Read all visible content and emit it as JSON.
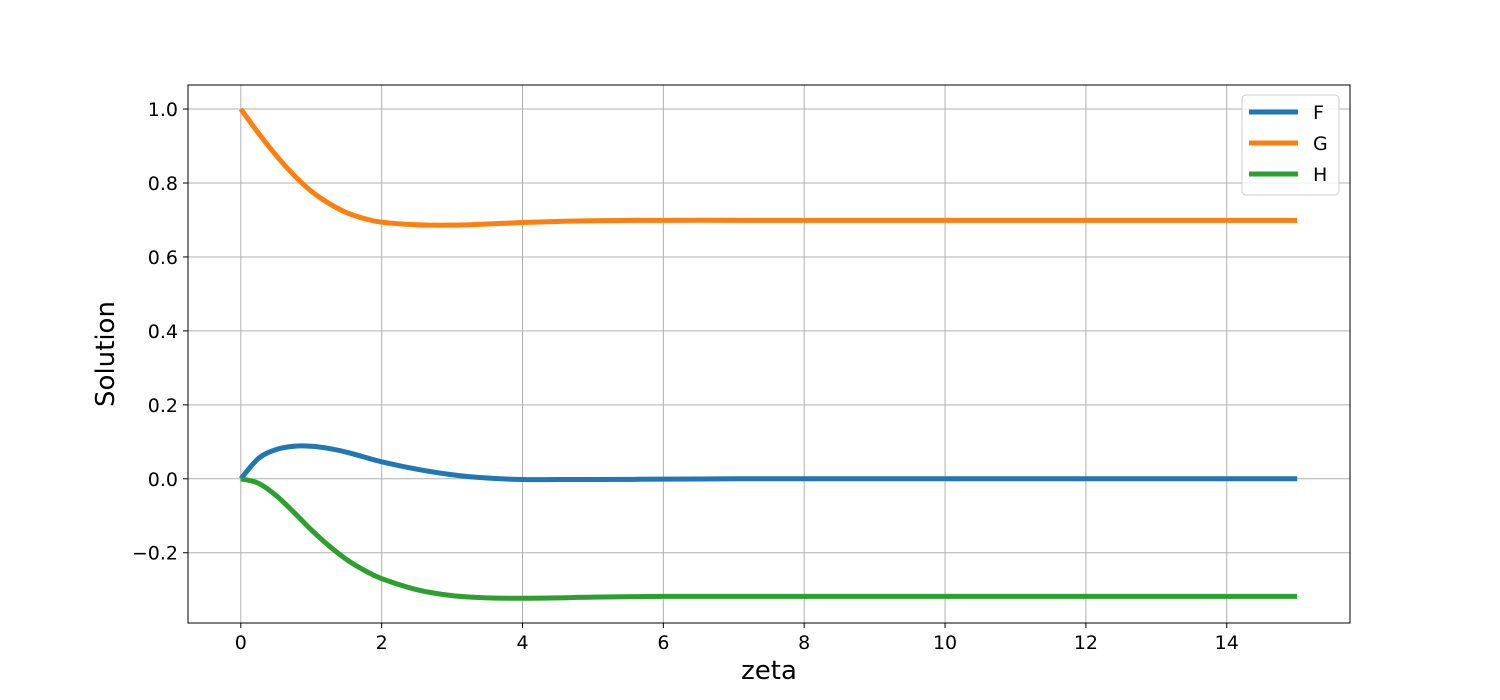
{
  "chart_data": {
    "type": "line",
    "title": "",
    "xlabel": "zeta",
    "ylabel": "Solution",
    "xlim": [
      -0.75,
      15.75
    ],
    "ylim": [
      -0.39,
      1.065
    ],
    "xticks": [
      0,
      2,
      4,
      6,
      8,
      10,
      12,
      14
    ],
    "xtick_labels": [
      "0",
      "2",
      "4",
      "6",
      "8",
      "10",
      "12",
      "14"
    ],
    "yticks": [
      -0.2,
      0.0,
      0.2,
      0.4,
      0.6,
      0.8,
      1.0
    ],
    "ytick_labels": [
      "−0.2",
      "0.0",
      "0.2",
      "0.4",
      "0.6",
      "0.8",
      "1.0"
    ],
    "grid": true,
    "legend_position": "top-right",
    "x": [
      0,
      0.25,
      0.5,
      0.75,
      1,
      1.25,
      1.5,
      1.75,
      2,
      2.5,
      3,
      3.5,
      4,
      4.5,
      5,
      6,
      7,
      8,
      9,
      10,
      11,
      12,
      13,
      14,
      15
    ],
    "series": [
      {
        "name": "F",
        "color": "#1f77b4",
        "values": [
          0.0,
          0.055,
          0.079,
          0.088,
          0.088,
          0.082,
          0.072,
          0.059,
          0.046,
          0.026,
          0.011,
          0.002,
          -0.002,
          -0.002,
          -0.002,
          -0.001,
          0.0,
          0.0,
          0.0,
          0.0,
          0.0,
          0.0,
          0.0,
          0.0,
          0.0
        ]
      },
      {
        "name": "G",
        "color": "#ff7f0e",
        "values": [
          1.0,
          0.935,
          0.875,
          0.822,
          0.778,
          0.745,
          0.72,
          0.704,
          0.694,
          0.687,
          0.686,
          0.689,
          0.693,
          0.696,
          0.698,
          0.699,
          0.699,
          0.699,
          0.699,
          0.699,
          0.699,
          0.699,
          0.699,
          0.699,
          0.699
        ]
      },
      {
        "name": "H",
        "color": "#2ca02c",
        "values": [
          0.0,
          -0.012,
          -0.045,
          -0.09,
          -0.138,
          -0.181,
          -0.218,
          -0.247,
          -0.27,
          -0.3,
          -0.316,
          -0.322,
          -0.323,
          -0.322,
          -0.32,
          -0.318,
          -0.318,
          -0.318,
          -0.318,
          -0.318,
          -0.318,
          -0.318,
          -0.318,
          -0.318,
          -0.318
        ]
      }
    ]
  }
}
